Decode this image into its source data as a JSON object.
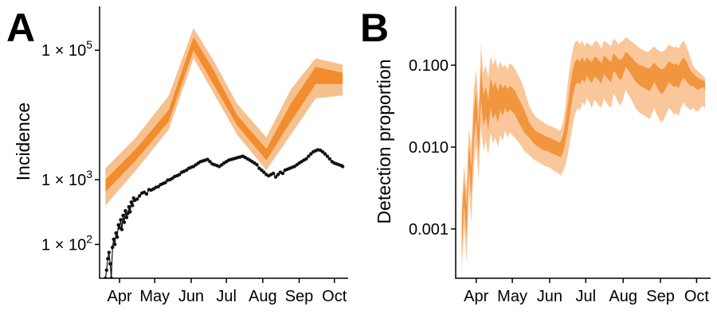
{
  "colors": {
    "band_outer": "#f7c08f",
    "band_inner": "#f28c2c",
    "band_b_outer": "#f9c79a",
    "band_b_inner": "#f2953f",
    "observed": "#111111"
  },
  "chart_data": [
    {
      "panel": "A",
      "type": "line",
      "xlabel": "",
      "ylabel": "Incidence",
      "y_scale": "log",
      "ylim": [
        30,
        450000
      ],
      "x_range": [
        "2020-03-15",
        "2020-10-10"
      ],
      "x_ticks": [
        {
          "date": "2020-04-01",
          "label": "Apr"
        },
        {
          "date": "2020-05-01",
          "label": "May"
        },
        {
          "date": "2020-06-01",
          "label": "Jun"
        },
        {
          "date": "2020-07-01",
          "label": "Jul"
        },
        {
          "date": "2020-08-01",
          "label": "Aug"
        },
        {
          "date": "2020-09-01",
          "label": "Sep"
        },
        {
          "date": "2020-10-01",
          "label": "Oct"
        }
      ],
      "y_ticks": [
        {
          "value": 100,
          "base": "1 × 10",
          "exp": "2"
        },
        {
          "value": 1000,
          "base": "1 × 10",
          "exp": "3"
        },
        {
          "value": 100000,
          "base": "1 × 10",
          "exp": "5"
        }
      ],
      "series": [
        {
          "kind": "band",
          "x": [
            "2020-03-20",
            "2020-04-15",
            "2020-05-13",
            "2020-06-03",
            "2020-06-20",
            "2020-07-10",
            "2020-08-04",
            "2020-08-25",
            "2020-09-15",
            "2020-10-08"
          ],
          "outer_low": [
            400,
            1400,
            6000,
            75000,
            22000,
            5000,
            1400,
            5000,
            18000,
            20000
          ],
          "outer_high": [
            1500,
            4500,
            20000,
            220000,
            70000,
            15000,
            4500,
            25000,
            75000,
            60000
          ],
          "inner_low": [
            650,
            2000,
            8000,
            100000,
            30000,
            7000,
            2000,
            8000,
            30000,
            30000
          ],
          "inner_high": [
            1000,
            3000,
            12000,
            160000,
            50000,
            10000,
            3000,
            15000,
            55000,
            45000
          ]
        },
        {
          "kind": "points",
          "x": [
            "2020-03-20",
            "2020-03-21",
            "2020-03-22",
            "2020-03-23",
            "2020-03-24",
            "2020-03-25",
            "2020-03-26",
            "2020-03-27",
            "2020-03-28",
            "2020-03-29",
            "2020-03-30",
            "2020-03-31",
            "2020-04-01",
            "2020-04-02",
            "2020-04-03",
            "2020-04-04",
            "2020-04-05",
            "2020-04-06",
            "2020-04-07",
            "2020-04-08",
            "2020-04-09",
            "2020-04-10",
            "2020-04-11",
            "2020-04-12",
            "2020-04-13",
            "2020-04-14",
            "2020-04-16",
            "2020-04-18",
            "2020-04-20",
            "2020-04-22",
            "2020-04-24",
            "2020-04-26",
            "2020-04-28",
            "2020-04-30",
            "2020-05-02",
            "2020-05-04",
            "2020-05-06",
            "2020-05-08",
            "2020-05-10",
            "2020-05-12",
            "2020-05-14",
            "2020-05-16",
            "2020-05-18",
            "2020-05-20",
            "2020-05-22",
            "2020-05-24",
            "2020-05-26",
            "2020-05-28",
            "2020-05-30",
            "2020-06-01",
            "2020-06-03",
            "2020-06-05",
            "2020-06-07",
            "2020-06-09",
            "2020-06-11",
            "2020-06-13",
            "2020-06-15",
            "2020-06-17",
            "2020-06-19",
            "2020-06-21",
            "2020-06-23",
            "2020-06-25",
            "2020-06-27",
            "2020-06-29",
            "2020-07-01",
            "2020-07-03",
            "2020-07-05",
            "2020-07-07",
            "2020-07-09",
            "2020-07-11",
            "2020-07-13",
            "2020-07-15",
            "2020-07-17",
            "2020-07-19",
            "2020-07-21",
            "2020-07-23",
            "2020-07-25",
            "2020-07-27",
            "2020-07-29",
            "2020-07-31",
            "2020-08-02",
            "2020-08-04",
            "2020-08-06",
            "2020-08-08",
            "2020-08-10",
            "2020-08-12",
            "2020-08-14",
            "2020-08-16",
            "2020-08-18",
            "2020-08-20",
            "2020-08-22",
            "2020-08-24",
            "2020-08-26",
            "2020-08-28",
            "2020-08-30",
            "2020-09-01",
            "2020-09-03",
            "2020-09-05",
            "2020-09-07",
            "2020-09-09",
            "2020-09-11",
            "2020-09-13",
            "2020-09-15",
            "2020-09-17",
            "2020-09-19",
            "2020-09-21",
            "2020-09-23",
            "2020-09-25",
            "2020-09-27",
            "2020-09-29",
            "2020-10-01",
            "2020-10-03",
            "2020-10-05",
            "2020-10-07",
            "2020-10-08"
          ],
          "y": [
            22,
            40,
            60,
            75,
            50,
            30,
            90,
            120,
            100,
            150,
            130,
            200,
            180,
            240,
            170,
            280,
            220,
            330,
            260,
            300,
            380,
            320,
            450,
            400,
            520,
            480,
            500,
            560,
            620,
            640,
            600,
            700,
            690,
            720,
            760,
            780,
            840,
            870,
            900,
            980,
            1000,
            1050,
            1120,
            1150,
            1200,
            1300,
            1350,
            1400,
            1500,
            1550,
            1600,
            1700,
            1800,
            1900,
            1950,
            2000,
            2050,
            1900,
            1750,
            1700,
            1650,
            1600,
            1700,
            1800,
            1900,
            2000,
            2050,
            2100,
            2150,
            2200,
            2250,
            2300,
            2200,
            2100,
            2000,
            1900,
            1800,
            1700,
            1500,
            1400,
            1300,
            1200,
            1150,
            1200,
            1250,
            1100,
            1200,
            1300,
            1250,
            1400,
            1450,
            1500,
            1550,
            1600,
            1700,
            1800,
            1900,
            2000,
            2100,
            2300,
            2500,
            2700,
            2800,
            2900,
            2850,
            2700,
            2500,
            2300,
            2100,
            1900,
            1800,
            1750,
            1700,
            1650,
            1600
          ]
        }
      ]
    },
    {
      "panel": "B",
      "type": "area",
      "xlabel": "",
      "ylabel": "Detection proportion",
      "y_scale": "log",
      "ylim": [
        0.00025,
        0.5
      ],
      "x_range": [
        "2020-03-15",
        "2020-10-10"
      ],
      "x_ticks": [
        {
          "date": "2020-04-01",
          "label": "Apr"
        },
        {
          "date": "2020-05-01",
          "label": "May"
        },
        {
          "date": "2020-06-01",
          "label": "Jun"
        },
        {
          "date": "2020-07-01",
          "label": "Jul"
        },
        {
          "date": "2020-08-01",
          "label": "Aug"
        },
        {
          "date": "2020-09-01",
          "label": "Sep"
        },
        {
          "date": "2020-10-01",
          "label": "Oct"
        }
      ],
      "y_ticks": [
        {
          "value": 0.001,
          "label": "0.001"
        },
        {
          "value": 0.01,
          "label": "0.010"
        },
        {
          "value": 0.1,
          "label": "0.100"
        }
      ],
      "series": [
        {
          "kind": "band",
          "x": [
            "2020-03-20",
            "2020-03-22",
            "2020-03-24",
            "2020-03-26",
            "2020-03-28",
            "2020-03-30",
            "2020-04-01",
            "2020-04-03",
            "2020-04-05",
            "2020-04-07",
            "2020-04-09",
            "2020-04-11",
            "2020-04-13",
            "2020-04-15",
            "2020-04-17",
            "2020-04-19",
            "2020-04-21",
            "2020-04-23",
            "2020-04-25",
            "2020-04-27",
            "2020-04-29",
            "2020-05-01",
            "2020-05-03",
            "2020-05-05",
            "2020-05-07",
            "2020-05-09",
            "2020-05-11",
            "2020-05-13",
            "2020-05-15",
            "2020-05-17",
            "2020-05-19",
            "2020-05-21",
            "2020-05-23",
            "2020-05-25",
            "2020-05-27",
            "2020-05-29",
            "2020-05-31",
            "2020-06-02",
            "2020-06-04",
            "2020-06-06",
            "2020-06-08",
            "2020-06-10",
            "2020-06-12",
            "2020-06-14",
            "2020-06-16",
            "2020-06-18",
            "2020-06-20",
            "2020-06-22",
            "2020-06-24",
            "2020-06-26",
            "2020-06-28",
            "2020-06-30",
            "2020-07-02",
            "2020-07-04",
            "2020-07-06",
            "2020-07-08",
            "2020-07-10",
            "2020-07-12",
            "2020-07-14",
            "2020-07-16",
            "2020-07-18",
            "2020-07-20",
            "2020-07-22",
            "2020-07-24",
            "2020-07-26",
            "2020-07-28",
            "2020-07-30",
            "2020-08-01",
            "2020-08-03",
            "2020-08-05",
            "2020-08-07",
            "2020-08-09",
            "2020-08-11",
            "2020-08-13",
            "2020-08-15",
            "2020-08-17",
            "2020-08-19",
            "2020-08-21",
            "2020-08-23",
            "2020-08-25",
            "2020-08-27",
            "2020-08-29",
            "2020-08-31",
            "2020-09-02",
            "2020-09-04",
            "2020-09-06",
            "2020-09-08",
            "2020-09-10",
            "2020-09-12",
            "2020-09-14",
            "2020-09-16",
            "2020-09-18",
            "2020-09-20",
            "2020-09-22",
            "2020-09-24",
            "2020-09-26",
            "2020-09-28",
            "2020-09-30",
            "2020-10-02",
            "2020-10-04",
            "2020-10-06",
            "2020-10-08"
          ],
          "outer_low": [
            0.0003,
            0.0011,
            0.0004,
            0.003,
            0.0012,
            0.006,
            0.011,
            0.004,
            0.018,
            0.009,
            0.012,
            0.008,
            0.015,
            0.011,
            0.013,
            0.01,
            0.014,
            0.012,
            0.016,
            0.013,
            0.015,
            0.014,
            0.013,
            0.012,
            0.011,
            0.01,
            0.009,
            0.0085,
            0.008,
            0.0075,
            0.007,
            0.0068,
            0.0065,
            0.0062,
            0.006,
            0.0058,
            0.0057,
            0.0055,
            0.0052,
            0.005,
            0.0048,
            0.0045,
            0.005,
            0.006,
            0.008,
            0.012,
            0.018,
            0.025,
            0.03,
            0.028,
            0.035,
            0.032,
            0.04,
            0.035,
            0.03,
            0.038,
            0.035,
            0.032,
            0.03,
            0.04,
            0.035,
            0.032,
            0.03,
            0.045,
            0.04,
            0.035,
            0.032,
            0.038,
            0.05,
            0.045,
            0.04,
            0.035,
            0.03,
            0.028,
            0.026,
            0.025,
            0.024,
            0.023,
            0.022,
            0.026,
            0.03,
            0.025,
            0.022,
            0.02,
            0.022,
            0.026,
            0.03,
            0.028,
            0.025,
            0.026,
            0.024,
            0.03,
            0.035,
            0.032,
            0.03,
            0.028,
            0.03,
            0.028,
            0.027,
            0.03,
            0.032,
            0.03
          ],
          "outer_high": [
            0.002,
            0.006,
            0.003,
            0.017,
            0.01,
            0.05,
            0.09,
            0.03,
            0.18,
            0.08,
            0.1,
            0.07,
            0.13,
            0.1,
            0.12,
            0.09,
            0.11,
            0.095,
            0.1,
            0.09,
            0.105,
            0.1,
            0.09,
            0.08,
            0.07,
            0.06,
            0.05,
            0.04,
            0.032,
            0.028,
            0.025,
            0.023,
            0.022,
            0.021,
            0.02,
            0.019,
            0.0185,
            0.018,
            0.0175,
            0.017,
            0.016,
            0.016,
            0.02,
            0.03,
            0.06,
            0.1,
            0.15,
            0.19,
            0.2,
            0.18,
            0.2,
            0.17,
            0.19,
            0.18,
            0.17,
            0.19,
            0.2,
            0.18,
            0.16,
            0.2,
            0.19,
            0.18,
            0.17,
            0.21,
            0.2,
            0.18,
            0.19,
            0.2,
            0.22,
            0.21,
            0.2,
            0.19,
            0.18,
            0.17,
            0.16,
            0.155,
            0.15,
            0.145,
            0.15,
            0.16,
            0.17,
            0.155,
            0.15,
            0.145,
            0.15,
            0.16,
            0.18,
            0.17,
            0.165,
            0.17,
            0.16,
            0.18,
            0.2,
            0.18,
            0.15,
            0.12,
            0.1,
            0.09,
            0.085,
            0.08,
            0.075,
            0.07
          ],
          "inner_low": [
            0.0005,
            0.002,
            0.0008,
            0.006,
            0.0025,
            0.012,
            0.022,
            0.008,
            0.038,
            0.018,
            0.024,
            0.016,
            0.03,
            0.022,
            0.026,
            0.02,
            0.028,
            0.024,
            0.03,
            0.026,
            0.029,
            0.027,
            0.025,
            0.022,
            0.019,
            0.017,
            0.015,
            0.014,
            0.013,
            0.012,
            0.011,
            0.0105,
            0.01,
            0.0095,
            0.0092,
            0.009,
            0.0088,
            0.0085,
            0.0082,
            0.008,
            0.0078,
            0.0075,
            0.0085,
            0.011,
            0.016,
            0.026,
            0.04,
            0.055,
            0.062,
            0.058,
            0.068,
            0.062,
            0.074,
            0.066,
            0.06,
            0.072,
            0.07,
            0.065,
            0.06,
            0.078,
            0.072,
            0.066,
            0.062,
            0.085,
            0.08,
            0.07,
            0.066,
            0.076,
            0.095,
            0.088,
            0.08,
            0.072,
            0.064,
            0.06,
            0.056,
            0.054,
            0.052,
            0.05,
            0.048,
            0.055,
            0.062,
            0.054,
            0.048,
            0.044,
            0.048,
            0.054,
            0.062,
            0.058,
            0.054,
            0.056,
            0.052,
            0.062,
            0.07,
            0.065,
            0.06,
            0.056,
            0.056,
            0.052,
            0.05,
            0.052,
            0.054,
            0.05
          ],
          "inner_high": [
            0.0012,
            0.004,
            0.0018,
            0.011,
            0.0055,
            0.028,
            0.05,
            0.017,
            0.095,
            0.042,
            0.055,
            0.038,
            0.07,
            0.053,
            0.062,
            0.048,
            0.06,
            0.052,
            0.058,
            0.051,
            0.056,
            0.053,
            0.049,
            0.043,
            0.037,
            0.033,
            0.028,
            0.024,
            0.02,
            0.018,
            0.0165,
            0.0155,
            0.015,
            0.0145,
            0.014,
            0.0135,
            0.0132,
            0.0128,
            0.0124,
            0.012,
            0.0115,
            0.0115,
            0.014,
            0.02,
            0.032,
            0.055,
            0.085,
            0.11,
            0.12,
            0.11,
            0.125,
            0.11,
            0.125,
            0.115,
            0.11,
            0.125,
            0.125,
            0.115,
            0.105,
            0.13,
            0.125,
            0.115,
            0.11,
            0.14,
            0.13,
            0.12,
            0.115,
            0.125,
            0.145,
            0.138,
            0.13,
            0.12,
            0.11,
            0.105,
            0.1,
            0.098,
            0.095,
            0.092,
            0.092,
            0.1,
            0.108,
            0.098,
            0.093,
            0.088,
            0.092,
            0.1,
            0.112,
            0.106,
            0.102,
            0.105,
            0.098,
            0.112,
            0.125,
            0.115,
            0.1,
            0.086,
            0.08,
            0.074,
            0.07,
            0.068,
            0.066,
            0.062
          ]
        }
      ]
    }
  ],
  "panels": {
    "a": {
      "letter": "A"
    },
    "b": {
      "letter": "B"
    }
  }
}
